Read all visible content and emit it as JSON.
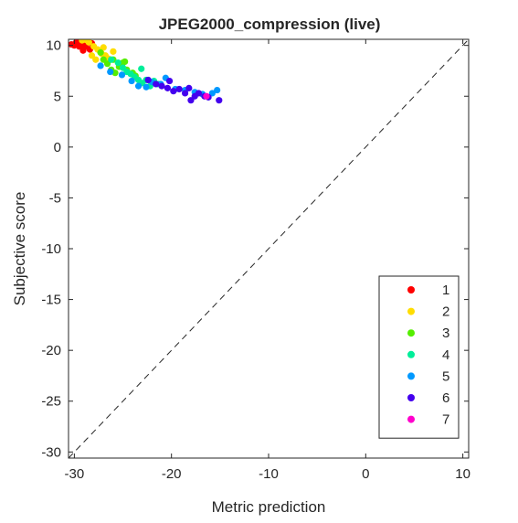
{
  "chart_data": {
    "type": "scatter",
    "title": "JPEG2000_compression (live)",
    "xlabel": "Metric prediction",
    "ylabel": "Subjective score",
    "xlim": [
      -30.6,
      10.6
    ],
    "ylim": [
      -30.6,
      10.6
    ],
    "xticks": [
      -30,
      -20,
      -10,
      0,
      10
    ],
    "yticks": [
      -30,
      -25,
      -20,
      -15,
      -10,
      -5,
      0,
      5,
      10
    ],
    "identity_line": true,
    "grid": false,
    "legend_position": "bottom-right",
    "series": [
      {
        "name": "1",
        "color": "#ff0000",
        "points": [
          [
            -30.3,
            10.1
          ],
          [
            -30.0,
            10.0
          ],
          [
            -29.8,
            10.3
          ],
          [
            -29.5,
            9.9
          ],
          [
            -29.3,
            10.2
          ],
          [
            -29.0,
            9.8
          ],
          [
            -28.8,
            10.0
          ],
          [
            -28.6,
            10.4
          ],
          [
            -29.6,
            10.5
          ],
          [
            -28.4,
            9.6
          ],
          [
            -29.1,
            9.5
          ],
          [
            -28.2,
            10.2
          ]
        ]
      },
      {
        "name": "2",
        "color": "#ffdd00",
        "points": [
          [
            -29.2,
            10.5
          ],
          [
            -28.5,
            10.3
          ],
          [
            -28.0,
            9.9
          ],
          [
            -27.6,
            9.6
          ],
          [
            -27.2,
            9.2
          ],
          [
            -26.8,
            9.0
          ],
          [
            -26.5,
            8.7
          ],
          [
            -28.2,
            9.0
          ],
          [
            -27.8,
            8.6
          ],
          [
            -26.0,
            9.4
          ],
          [
            -27.0,
            9.8
          ],
          [
            -28.7,
            10.5
          ]
        ]
      },
      {
        "name": "3",
        "color": "#55ee00",
        "points": [
          [
            -27.3,
            9.3
          ],
          [
            -27.0,
            8.6
          ],
          [
            -26.6,
            8.2
          ],
          [
            -26.2,
            7.6
          ],
          [
            -25.8,
            7.3
          ],
          [
            -25.4,
            7.9
          ],
          [
            -25.0,
            8.3
          ],
          [
            -24.6,
            7.6
          ],
          [
            -24.0,
            7.3
          ],
          [
            -23.7,
            7.0
          ],
          [
            -24.8,
            8.4
          ],
          [
            -26.0,
            8.6
          ]
        ]
      },
      {
        "name": "4",
        "color": "#00ee99",
        "points": [
          [
            -26.2,
            8.6
          ],
          [
            -25.5,
            8.3
          ],
          [
            -25.0,
            7.8
          ],
          [
            -24.6,
            7.4
          ],
          [
            -24.2,
            7.2
          ],
          [
            -23.8,
            6.9
          ],
          [
            -23.4,
            6.6
          ],
          [
            -23.0,
            6.3
          ],
          [
            -22.6,
            6.6
          ],
          [
            -22.2,
            6.0
          ],
          [
            -21.8,
            6.5
          ],
          [
            -21.4,
            6.2
          ],
          [
            -23.1,
            7.7
          ]
        ]
      },
      {
        "name": "5",
        "color": "#0099ff",
        "points": [
          [
            -27.3,
            8.0
          ],
          [
            -26.3,
            7.4
          ],
          [
            -25.1,
            7.1
          ],
          [
            -24.1,
            6.5
          ],
          [
            -23.4,
            6.0
          ],
          [
            -22.6,
            5.9
          ],
          [
            -22.0,
            6.4
          ],
          [
            -21.1,
            6.2
          ],
          [
            -20.6,
            6.8
          ],
          [
            -19.6,
            5.7
          ],
          [
            -18.6,
            5.6
          ],
          [
            -17.6,
            5.4
          ],
          [
            -16.8,
            5.2
          ],
          [
            -15.8,
            5.3
          ],
          [
            -15.3,
            5.6
          ]
        ]
      },
      {
        "name": "6",
        "color": "#4400ee",
        "points": [
          [
            -22.4,
            6.6
          ],
          [
            -21.6,
            6.2
          ],
          [
            -21.0,
            6.0
          ],
          [
            -20.4,
            5.8
          ],
          [
            -19.8,
            5.5
          ],
          [
            -19.2,
            5.7
          ],
          [
            -18.6,
            5.3
          ],
          [
            -18.2,
            5.8
          ],
          [
            -17.6,
            5.0
          ],
          [
            -17.2,
            5.3
          ],
          [
            -16.6,
            5.0
          ],
          [
            -16.2,
            4.9
          ],
          [
            -15.1,
            4.6
          ],
          [
            -18.0,
            4.6
          ],
          [
            -20.2,
            6.5
          ]
        ]
      },
      {
        "name": "7",
        "color": "#ff00cc",
        "points": [
          [
            -16.4,
            5.0
          ]
        ]
      }
    ]
  }
}
